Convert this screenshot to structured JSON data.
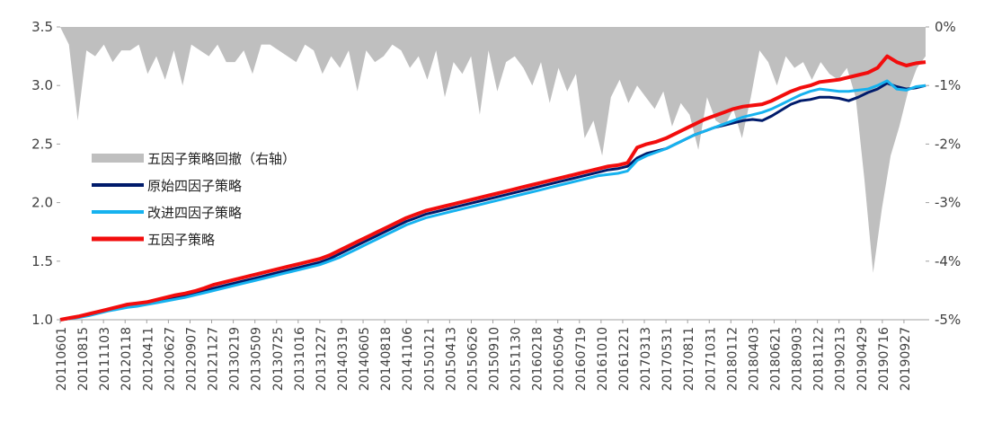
{
  "chart_data": {
    "type": "line",
    "title": "",
    "xlabel": "",
    "ylabel": "",
    "x_tick_labels": [
      "20110601",
      "20110815",
      "20111103",
      "20120118",
      "20120411",
      "20120627",
      "20120907",
      "20121127",
      "20130219",
      "20130509",
      "20130725",
      "20131016",
      "20131227",
      "20140319",
      "20140605",
      "20140818",
      "20141106",
      "20150121",
      "20150413",
      "20150626",
      "20150910",
      "20151130",
      "20160218",
      "20160504",
      "20160719",
      "20161010",
      "20161221",
      "20170313",
      "20170531",
      "20170811",
      "20171031",
      "20180112",
      "20180403",
      "20180621",
      "20180903",
      "20181122",
      "20190213",
      "20190429",
      "20190716",
      "20190927"
    ],
    "y_left": {
      "range": [
        1.0,
        3.5
      ],
      "ticks": [
        "1.0",
        "1.5",
        "2.0",
        "2.5",
        "3.0",
        "3.5"
      ]
    },
    "y_right": {
      "range": [
        -5,
        0
      ],
      "unit": "%",
      "ticks": [
        "-5%",
        "-4%",
        "-3%",
        "-2%",
        "-1%",
        "0%"
      ]
    },
    "legend_position": "left",
    "series": [
      {
        "name": "五因子策略回撤（右轴）",
        "type": "area",
        "axis": "right",
        "color": "#bfbfbf",
        "values": [
          0,
          -0.3,
          -1.6,
          -0.4,
          -0.5,
          -0.3,
          -0.6,
          -0.4,
          -0.4,
          -0.3,
          -0.8,
          -0.5,
          -0.9,
          -0.4,
          -1.0,
          -0.3,
          -0.4,
          -0.5,
          -0.3,
          -0.6,
          -0.6,
          -0.4,
          -0.8,
          -0.3,
          -0.3,
          -0.4,
          -0.5,
          -0.6,
          -0.3,
          -0.4,
          -0.8,
          -0.5,
          -0.7,
          -0.4,
          -1.1,
          -0.4,
          -0.6,
          -0.5,
          -0.3,
          -0.4,
          -0.7,
          -0.5,
          -0.9,
          -0.4,
          -1.2,
          -0.6,
          -0.8,
          -0.5,
          -1.5,
          -0.4,
          -1.1,
          -0.6,
          -0.5,
          -0.7,
          -1.0,
          -0.6,
          -1.3,
          -0.7,
          -1.1,
          -0.8,
          -1.9,
          -1.6,
          -2.2,
          -1.2,
          -0.9,
          -1.3,
          -1.0,
          -1.2,
          -1.4,
          -1.1,
          -1.7,
          -1.3,
          -1.5,
          -2.1,
          -1.2,
          -1.6,
          -1.7,
          -1.4,
          -1.9,
          -1.2,
          -0.4,
          -0.6,
          -1.0,
          -0.5,
          -0.7,
          -0.6,
          -0.9,
          -0.6,
          -0.8,
          -0.9,
          -0.7,
          -1.2,
          -2.6,
          -4.2,
          -3.1,
          -2.2,
          -1.7,
          -1.1,
          -0.7,
          -0.5
        ]
      },
      {
        "name": "原始四因子策略",
        "type": "line",
        "axis": "left",
        "color": "#001b6b",
        "values": [
          1.0,
          1.01,
          1.025,
          1.04,
          1.06,
          1.08,
          1.1,
          1.12,
          1.13,
          1.14,
          1.155,
          1.17,
          1.19,
          1.2,
          1.22,
          1.245,
          1.27,
          1.29,
          1.31,
          1.33,
          1.35,
          1.37,
          1.39,
          1.41,
          1.43,
          1.45,
          1.47,
          1.49,
          1.52,
          1.56,
          1.6,
          1.64,
          1.68,
          1.72,
          1.76,
          1.8,
          1.84,
          1.87,
          1.9,
          1.92,
          1.94,
          1.96,
          1.98,
          2.0,
          2.02,
          2.04,
          2.06,
          2.08,
          2.1,
          2.12,
          2.14,
          2.16,
          2.18,
          2.2,
          2.22,
          2.24,
          2.26,
          2.28,
          2.29,
          2.31,
          2.38,
          2.42,
          2.44,
          2.46,
          2.5,
          2.54,
          2.58,
          2.61,
          2.64,
          2.66,
          2.68,
          2.7,
          2.71,
          2.7,
          2.74,
          2.79,
          2.84,
          2.87,
          2.88,
          2.9,
          2.9,
          2.89,
          2.87,
          2.9,
          2.94,
          2.97,
          3.02,
          2.99,
          2.97,
          2.98,
          3.0
        ]
      },
      {
        "name": "改进四因子策略",
        "type": "line",
        "axis": "left",
        "color": "#16b2ef",
        "values": [
          1.0,
          1.01,
          1.02,
          1.035,
          1.055,
          1.075,
          1.09,
          1.105,
          1.115,
          1.13,
          1.145,
          1.16,
          1.175,
          1.19,
          1.21,
          1.23,
          1.25,
          1.27,
          1.29,
          1.31,
          1.33,
          1.35,
          1.37,
          1.39,
          1.41,
          1.43,
          1.45,
          1.47,
          1.5,
          1.53,
          1.57,
          1.61,
          1.65,
          1.69,
          1.73,
          1.77,
          1.81,
          1.84,
          1.87,
          1.89,
          1.91,
          1.93,
          1.95,
          1.97,
          1.99,
          2.01,
          2.03,
          2.05,
          2.07,
          2.09,
          2.11,
          2.13,
          2.15,
          2.17,
          2.19,
          2.21,
          2.23,
          2.24,
          2.25,
          2.27,
          2.36,
          2.4,
          2.43,
          2.46,
          2.5,
          2.54,
          2.58,
          2.61,
          2.64,
          2.67,
          2.7,
          2.73,
          2.75,
          2.77,
          2.8,
          2.84,
          2.88,
          2.92,
          2.95,
          2.97,
          2.96,
          2.95,
          2.95,
          2.96,
          2.97,
          3.0,
          3.04,
          2.97,
          2.96,
          2.99,
          3.0
        ]
      },
      {
        "name": "五因子策略",
        "type": "line",
        "axis": "left",
        "color": "#f20d0d",
        "values": [
          1.0,
          1.015,
          1.03,
          1.05,
          1.07,
          1.09,
          1.11,
          1.13,
          1.14,
          1.15,
          1.17,
          1.19,
          1.21,
          1.225,
          1.245,
          1.27,
          1.3,
          1.32,
          1.34,
          1.36,
          1.38,
          1.4,
          1.42,
          1.44,
          1.46,
          1.48,
          1.5,
          1.52,
          1.55,
          1.59,
          1.63,
          1.67,
          1.71,
          1.75,
          1.79,
          1.83,
          1.87,
          1.9,
          1.93,
          1.95,
          1.97,
          1.99,
          2.01,
          2.03,
          2.05,
          2.07,
          2.09,
          2.11,
          2.13,
          2.15,
          2.17,
          2.19,
          2.21,
          2.23,
          2.25,
          2.27,
          2.29,
          2.31,
          2.32,
          2.34,
          2.47,
          2.5,
          2.52,
          2.55,
          2.59,
          2.63,
          2.67,
          2.71,
          2.74,
          2.77,
          2.8,
          2.82,
          2.83,
          2.84,
          2.87,
          2.91,
          2.95,
          2.98,
          3.0,
          3.03,
          3.04,
          3.05,
          3.07,
          3.09,
          3.11,
          3.15,
          3.25,
          3.2,
          3.17,
          3.19,
          3.2
        ]
      }
    ]
  }
}
